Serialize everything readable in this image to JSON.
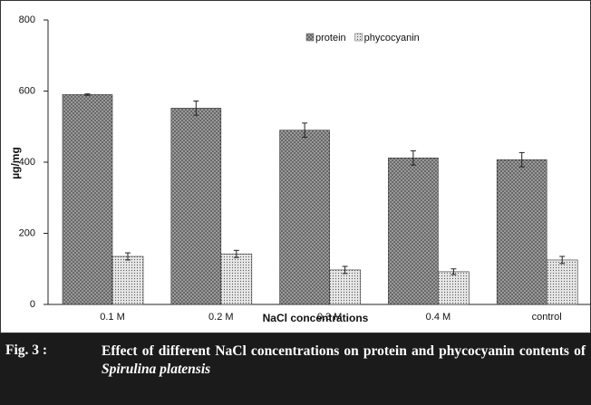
{
  "chart_data": {
    "type": "bar",
    "legend": "top",
    "xlabel": "NaCl concentrations",
    "ylabel": "µg/mg",
    "categories": [
      "0.1 M",
      "0.2 M",
      "0.3 M",
      "0.4 M",
      "control"
    ],
    "series": [
      {
        "name": "protein",
        "color": "#9a9a9a",
        "values": [
          590,
          552,
          490,
          412,
          407
        ],
        "errors": [
          2,
          20,
          20,
          20,
          20
        ]
      },
      {
        "name": "phycocyanin",
        "color": "#e6e6e6",
        "values": [
          135,
          142,
          97,
          92,
          125
        ],
        "errors": [
          10,
          10,
          10,
          8,
          10
        ]
      }
    ],
    "ylim": [
      0,
      800
    ],
    "yticks": [
      0,
      200,
      400,
      600,
      800
    ],
    "grid": false
  },
  "caption": {
    "label": "Fig. 3 :",
    "text": "Effect of different NaCl concentrations on protein and phycocyanin contents of",
    "species": "Spirulina platensis"
  }
}
